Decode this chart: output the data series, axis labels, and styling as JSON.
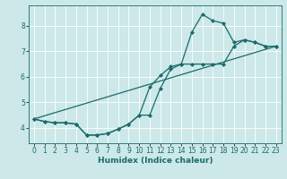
{
  "xlabel": "Humidex (Indice chaleur)",
  "bg_color": "#cce8e8",
  "grid_color": "#ffffff",
  "line_color": "#1a6b6b",
  "xlim": [
    -0.5,
    23.5
  ],
  "ylim": [
    3.4,
    8.8
  ],
  "xticks": [
    0,
    1,
    2,
    3,
    4,
    5,
    6,
    7,
    8,
    9,
    10,
    11,
    12,
    13,
    14,
    15,
    16,
    17,
    18,
    19,
    20,
    21,
    22,
    23
  ],
  "yticks": [
    4,
    5,
    6,
    7,
    8
  ],
  "line1_x": [
    0,
    1,
    2,
    3,
    4,
    5,
    6,
    7,
    8,
    9,
    10,
    11,
    12,
    13,
    14,
    15,
    16,
    17,
    18,
    19,
    20,
    21,
    22,
    23
  ],
  "line1_y": [
    4.35,
    4.25,
    4.2,
    4.2,
    4.15,
    3.72,
    3.72,
    3.78,
    3.95,
    4.15,
    4.5,
    5.6,
    6.05,
    6.4,
    6.5,
    7.75,
    8.45,
    8.2,
    8.1,
    7.35,
    7.45,
    7.35,
    7.2,
    7.2
  ],
  "line2_x": [
    0,
    1,
    2,
    3,
    4,
    5,
    6,
    7,
    8,
    9,
    10,
    11,
    12,
    13,
    14,
    15,
    16,
    17,
    18,
    19,
    20,
    21,
    22,
    23
  ],
  "line2_y": [
    4.35,
    4.25,
    4.2,
    4.2,
    4.15,
    3.72,
    3.72,
    3.78,
    3.95,
    4.15,
    4.5,
    4.5,
    5.55,
    6.3,
    6.5,
    6.5,
    6.5,
    6.5,
    6.5,
    7.2,
    7.45,
    7.35,
    7.2,
    7.2
  ],
  "line3_x": [
    0,
    23
  ],
  "line3_y": [
    4.35,
    7.2
  ],
  "tick_fontsize": 5.5,
  "xlabel_fontsize": 6.5
}
